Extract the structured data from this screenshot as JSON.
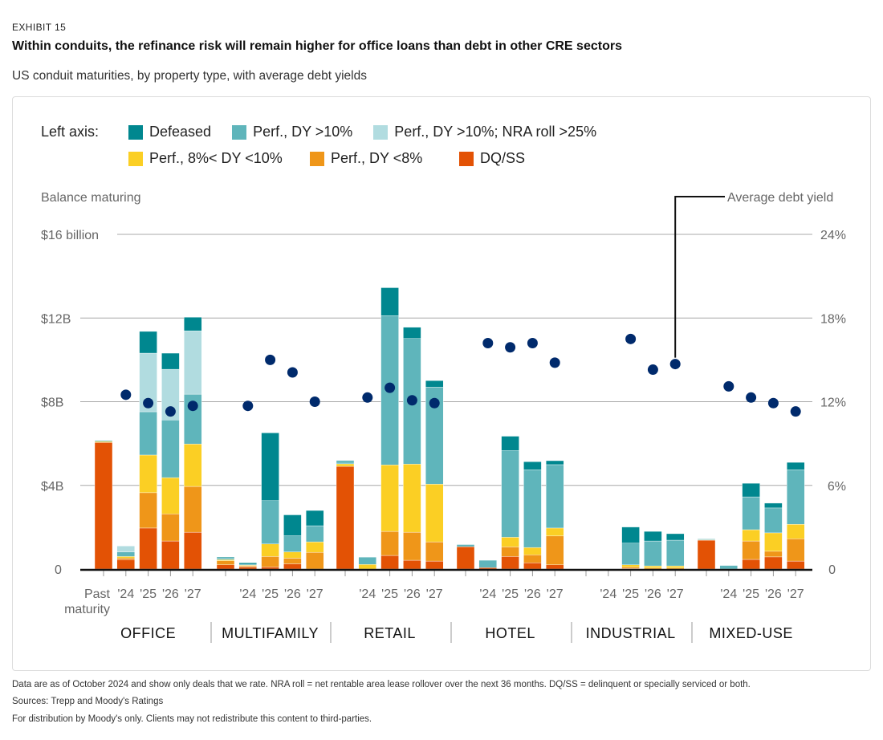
{
  "header": {
    "exhibit": "EXHIBIT 15",
    "title": "Within conduits, the refinance risk will remain higher for office loans than debt in other CRE sectors",
    "subtitle": "US conduit maturities, by property type, with average debt yields"
  },
  "legend": {
    "lead": "Left axis:",
    "items": [
      {
        "key": "defeased",
        "label": "Defeased",
        "color": "#00878f"
      },
      {
        "key": "perf_gt10",
        "label": "Perf., DY >10%",
        "color": "#5fb5bb"
      },
      {
        "key": "perf_gt10_nra",
        "label": "Perf., DY >10%; NRA roll >25%",
        "color": "#b1dce0"
      },
      {
        "key": "perf_8_10",
        "label": "Perf., 8%< DY <10%",
        "color": "#fbcf24"
      },
      {
        "key": "perf_lt8",
        "label": "Perf., DY <8%",
        "color": "#ef9619"
      },
      {
        "key": "dqss",
        "label": "DQ/SS",
        "color": "#e35205"
      }
    ]
  },
  "footer": {
    "note": "Data are as of October 2024 and show only deals that we rate. NRA roll = net rentable area lease rollover over the next 36 months. DQ/SS = delinquent or specially serviced or both.",
    "sources": "Sources: Trepp and Moody's Ratings",
    "distribution": "For distribution by Moody's only. Clients may not redistribute this content to third-parties."
  },
  "chart_data": {
    "type": "bar",
    "stacked": true,
    "title": "US conduit maturities, by property type, with average debt yields",
    "ylabel": "Balance maturing",
    "y2label": "Average debt yield",
    "ylim": [
      0,
      16
    ],
    "y2lim": [
      0,
      24
    ],
    "yticks": [
      "0",
      "$4B",
      "$8B",
      "$12B",
      "$16 billion"
    ],
    "yticks_values": [
      0,
      4,
      8,
      12,
      16
    ],
    "y2ticks": [
      "0",
      "6%",
      "12%",
      "18%",
      "24%"
    ],
    "y2ticks_values": [
      0,
      6,
      12,
      18,
      24
    ],
    "grid": true,
    "legend_position": "top-left",
    "units": "USD billions",
    "stack_order": [
      "dqss",
      "perf_lt8",
      "perf_8_10",
      "perf_gt10",
      "perf_gt10_nra",
      "defeased"
    ],
    "period_labels": [
      "Past maturity",
      "'24",
      "'25",
      "'26",
      "'27"
    ],
    "groups": [
      {
        "name": "OFFICE",
        "show_past_label": true,
        "periods": [
          {
            "period": "Past maturity",
            "dqss": 6.05,
            "perf_lt8": 0.0,
            "perf_8_10": 0.05,
            "perf_gt10": 0.05,
            "perf_gt10_nra": 0.0,
            "defeased": 0.0,
            "debt_yield": null
          },
          {
            "period": "'24",
            "dqss": 0.45,
            "perf_lt8": 0.08,
            "perf_8_10": 0.07,
            "perf_gt10": 0.22,
            "perf_gt10_nra": 0.28,
            "defeased": 0.0,
            "debt_yield": 12.5
          },
          {
            "period": "'25",
            "dqss": 1.96,
            "perf_lt8": 1.69,
            "perf_8_10": 1.8,
            "perf_gt10": 2.07,
            "perf_gt10_nra": 2.8,
            "defeased": 1.04,
            "debt_yield": 11.9
          },
          {
            "period": "'26",
            "dqss": 1.34,
            "perf_lt8": 1.3,
            "perf_8_10": 1.73,
            "perf_gt10": 2.76,
            "perf_gt10_nra": 2.42,
            "defeased": 0.77,
            "debt_yield": 11.3
          },
          {
            "period": "'27",
            "dqss": 1.76,
            "perf_lt8": 2.19,
            "perf_8_10": 2.03,
            "perf_gt10": 2.38,
            "perf_gt10_nra": 3.03,
            "defeased": 0.65,
            "debt_yield": 11.7
          }
        ]
      },
      {
        "name": "MULTIFAMILY",
        "show_past_label": false,
        "periods": [
          {
            "period": "Past maturity",
            "dqss": 0.2,
            "perf_lt8": 0.2,
            "perf_8_10": 0.05,
            "perf_gt10": 0.07,
            "perf_gt10_nra": 0.0,
            "defeased": 0.05,
            "debt_yield": null
          },
          {
            "period": "'24",
            "dqss": 0.1,
            "perf_lt8": 0.05,
            "perf_8_10": 0.03,
            "perf_gt10": 0.05,
            "perf_gt10_nra": 0.0,
            "defeased": 0.07,
            "debt_yield": 11.7
          },
          {
            "period": "'25",
            "dqss": 0.1,
            "perf_lt8": 0.5,
            "perf_8_10": 0.6,
            "perf_gt10": 2.07,
            "perf_gt10_nra": 0.0,
            "defeased": 3.24,
            "debt_yield": 15.0
          },
          {
            "period": "'26",
            "dqss": 0.25,
            "perf_lt8": 0.27,
            "perf_8_10": 0.3,
            "perf_gt10": 0.77,
            "perf_gt10_nra": 0.0,
            "defeased": 1.0,
            "debt_yield": 14.1
          },
          {
            "period": "'27",
            "dqss": 0.0,
            "perf_lt8": 0.8,
            "perf_8_10": 0.5,
            "perf_gt10": 0.77,
            "perf_gt10_nra": 0.0,
            "defeased": 0.73,
            "debt_yield": 12.0
          }
        ]
      },
      {
        "name": "RETAIL",
        "show_past_label": false,
        "periods": [
          {
            "period": "Past maturity",
            "dqss": 4.91,
            "perf_lt8": 0.0,
            "perf_8_10": 0.12,
            "perf_gt10": 0.1,
            "perf_gt10_nra": 0.0,
            "defeased": 0.05,
            "debt_yield": null
          },
          {
            "period": "'24",
            "dqss": 0.0,
            "perf_lt8": 0.0,
            "perf_8_10": 0.22,
            "perf_gt10": 0.35,
            "perf_gt10_nra": 0.0,
            "defeased": 0.0,
            "debt_yield": 12.3
          },
          {
            "period": "'25",
            "dqss": 0.65,
            "perf_lt8": 1.15,
            "perf_8_10": 3.18,
            "perf_gt10": 7.13,
            "perf_gt10_nra": 0.0,
            "defeased": 1.34,
            "debt_yield": 13.0
          },
          {
            "period": "'26",
            "dqss": 0.42,
            "perf_lt8": 1.34,
            "perf_8_10": 3.26,
            "perf_gt10": 6.0,
            "perf_gt10_nra": 0.0,
            "defeased": 0.54,
            "debt_yield": 12.1
          },
          {
            "period": "'27",
            "dqss": 0.38,
            "perf_lt8": 0.92,
            "perf_8_10": 2.76,
            "perf_gt10": 4.64,
            "perf_gt10_nra": 0.0,
            "defeased": 0.31,
            "debt_yield": 11.9
          }
        ]
      },
      {
        "name": "HOTEL",
        "show_past_label": false,
        "periods": [
          {
            "period": "Past maturity",
            "dqss": 1.07,
            "perf_lt8": 0.0,
            "perf_8_10": 0.0,
            "perf_gt10": 0.1,
            "perf_gt10_nra": 0.0,
            "defeased": 0.0,
            "debt_yield": null
          },
          {
            "period": "'24",
            "dqss": 0.07,
            "perf_lt8": 0.0,
            "perf_8_10": 0.0,
            "perf_gt10": 0.35,
            "perf_gt10_nra": 0.0,
            "defeased": 0.0,
            "debt_yield": 16.2
          },
          {
            "period": "'25",
            "dqss": 0.6,
            "perf_lt8": 0.46,
            "perf_8_10": 0.46,
            "perf_gt10": 4.14,
            "perf_gt10_nra": 0.0,
            "defeased": 0.69,
            "debt_yield": 15.9
          },
          {
            "period": "'26",
            "dqss": 0.3,
            "perf_lt8": 0.38,
            "perf_8_10": 0.35,
            "perf_gt10": 3.72,
            "perf_gt10_nra": 0.0,
            "defeased": 0.38,
            "debt_yield": 16.2
          },
          {
            "period": "'27",
            "dqss": 0.2,
            "perf_lt8": 1.38,
            "perf_8_10": 0.38,
            "perf_gt10": 3.03,
            "perf_gt10_nra": 0.0,
            "defeased": 0.19,
            "debt_yield": 14.8
          }
        ]
      },
      {
        "name": "INDUSTRIAL",
        "show_past_label": false,
        "periods": [
          {
            "period": "Past maturity",
            "dqss": 0.0,
            "perf_lt8": 0.0,
            "perf_8_10": 0.0,
            "perf_gt10": 0.0,
            "perf_gt10_nra": 0.0,
            "defeased": 0.0,
            "debt_yield": null
          },
          {
            "period": "'24",
            "dqss": 0.0,
            "perf_lt8": 0.0,
            "perf_8_10": 0.0,
            "perf_gt10": 0.0,
            "perf_gt10_nra": 0.0,
            "defeased": 0.0,
            "debt_yield": null
          },
          {
            "period": "'25",
            "dqss": 0.03,
            "perf_lt8": 0.07,
            "perf_8_10": 0.1,
            "perf_gt10": 1.04,
            "perf_gt10_nra": 0.0,
            "defeased": 0.77,
            "debt_yield": 16.5
          },
          {
            "period": "'26",
            "dqss": 0.0,
            "perf_lt8": 0.05,
            "perf_8_10": 0.1,
            "perf_gt10": 1.19,
            "perf_gt10_nra": 0.0,
            "defeased": 0.46,
            "debt_yield": 14.3
          },
          {
            "period": "'27",
            "dqss": 0.0,
            "perf_lt8": 0.05,
            "perf_8_10": 0.1,
            "perf_gt10": 1.23,
            "perf_gt10_nra": 0.0,
            "defeased": 0.31,
            "debt_yield": 14.7
          }
        ]
      },
      {
        "name": "MIXED-USE",
        "show_past_label": false,
        "periods": [
          {
            "period": "Past maturity",
            "dqss": 1.38,
            "perf_lt8": 0.0,
            "perf_8_10": 0.02,
            "perf_gt10": 0.04,
            "perf_gt10_nra": 0.0,
            "defeased": 0.0,
            "debt_yield": null
          },
          {
            "period": "'24",
            "dqss": 0.0,
            "perf_lt8": 0.0,
            "perf_8_10": 0.0,
            "perf_gt10": 0.17,
            "perf_gt10_nra": 0.0,
            "defeased": 0.0,
            "debt_yield": 13.1
          },
          {
            "period": "'25",
            "dqss": 0.46,
            "perf_lt8": 0.88,
            "perf_8_10": 0.54,
            "perf_gt10": 1.57,
            "perf_gt10_nra": 0.0,
            "defeased": 0.65,
            "debt_yield": 12.3
          },
          {
            "period": "'26",
            "dqss": 0.58,
            "perf_lt8": 0.27,
            "perf_8_10": 0.88,
            "perf_gt10": 1.19,
            "perf_gt10_nra": 0.0,
            "defeased": 0.23,
            "debt_yield": 11.9
          },
          {
            "period": "'27",
            "dqss": 0.38,
            "perf_lt8": 1.07,
            "perf_8_10": 0.69,
            "perf_gt10": 2.61,
            "perf_gt10_nra": 0.0,
            "defeased": 0.35,
            "debt_yield": 11.3
          }
        ]
      }
    ],
    "dot_color": "#002a6c",
    "annotation": {
      "text": "Average debt yield",
      "points_to": {
        "group": "INDUSTRIAL",
        "period": "'27"
      }
    }
  }
}
